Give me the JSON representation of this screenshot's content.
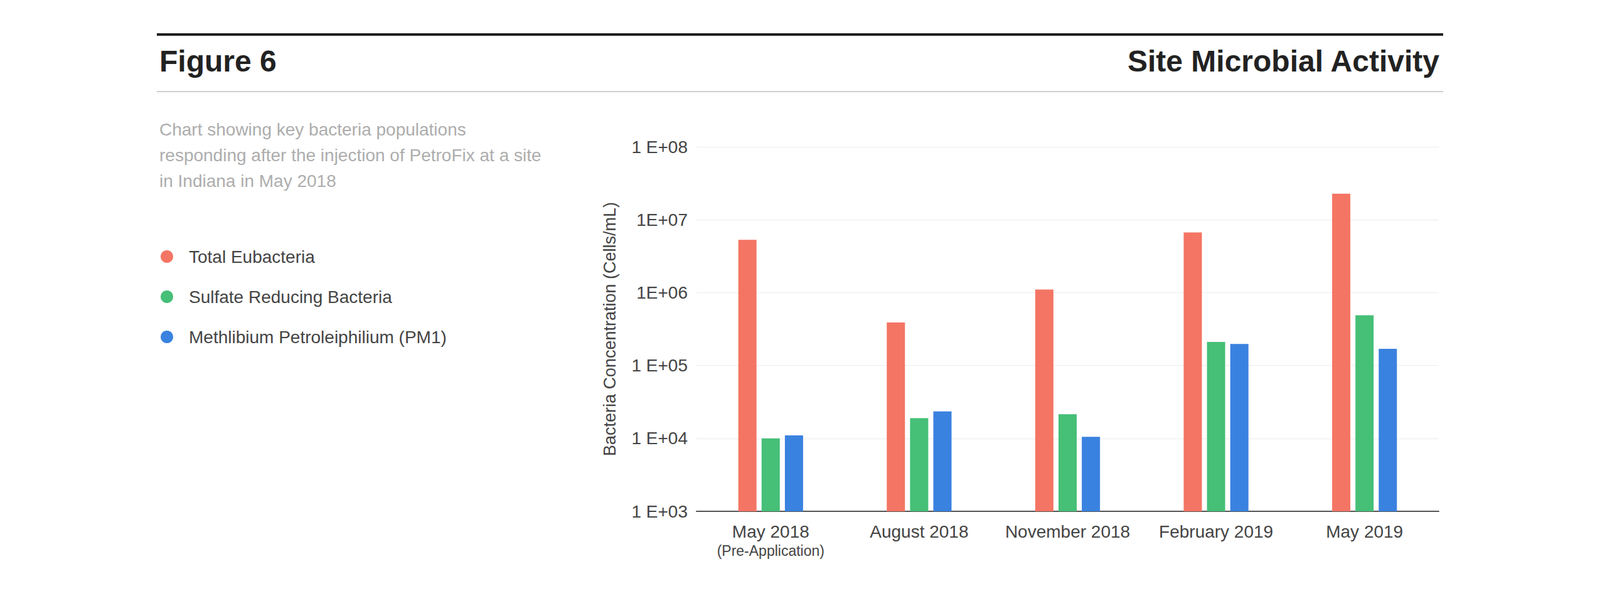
{
  "chart_data": {
    "type": "bar",
    "figure_label": "Figure 6",
    "title": "Site Microbial Activity",
    "subtitle": "Chart showing key bacteria populations\nresponding after the injection of PetroFix at a site\nin Indiana in May 2018",
    "ylabel": "Bacteria Concentration (Cells/mL)",
    "categories": [
      "May 2018\n(Pre-Application)",
      "August 2018",
      "November 2018",
      "February 2019",
      "May 2019"
    ],
    "series": [
      {
        "name": "Total Eubacteria",
        "color": "#f47564",
        "values": [
          5300000,
          390000,
          1100000,
          6700000,
          22700000
        ]
      },
      {
        "name": "Sulfate Reducing Bacteria",
        "color": "#46bf77",
        "values": [
          10000,
          19000,
          21500,
          211000,
          490000
        ]
      },
      {
        "name": "Methlibium Petroleiphilium (PM1)",
        "color": "#3a82e0",
        "values": [
          11000,
          23500,
          10500,
          198000,
          169000
        ]
      }
    ],
    "ylim": [
      1000,
      100000000
    ],
    "yticks": [
      {
        "value": 1000,
        "label": "1 E+03"
      },
      {
        "value": 10000,
        "label": "1 E+04"
      },
      {
        "value": 100000,
        "label": "1 E+05"
      },
      {
        "value": 1000000,
        "label": "1E+06"
      },
      {
        "value": 10000000,
        "label": "1E+07"
      },
      {
        "value": 100000000,
        "label": "1 E+08"
      }
    ],
    "log": "y",
    "grid": true,
    "legend": "left"
  }
}
